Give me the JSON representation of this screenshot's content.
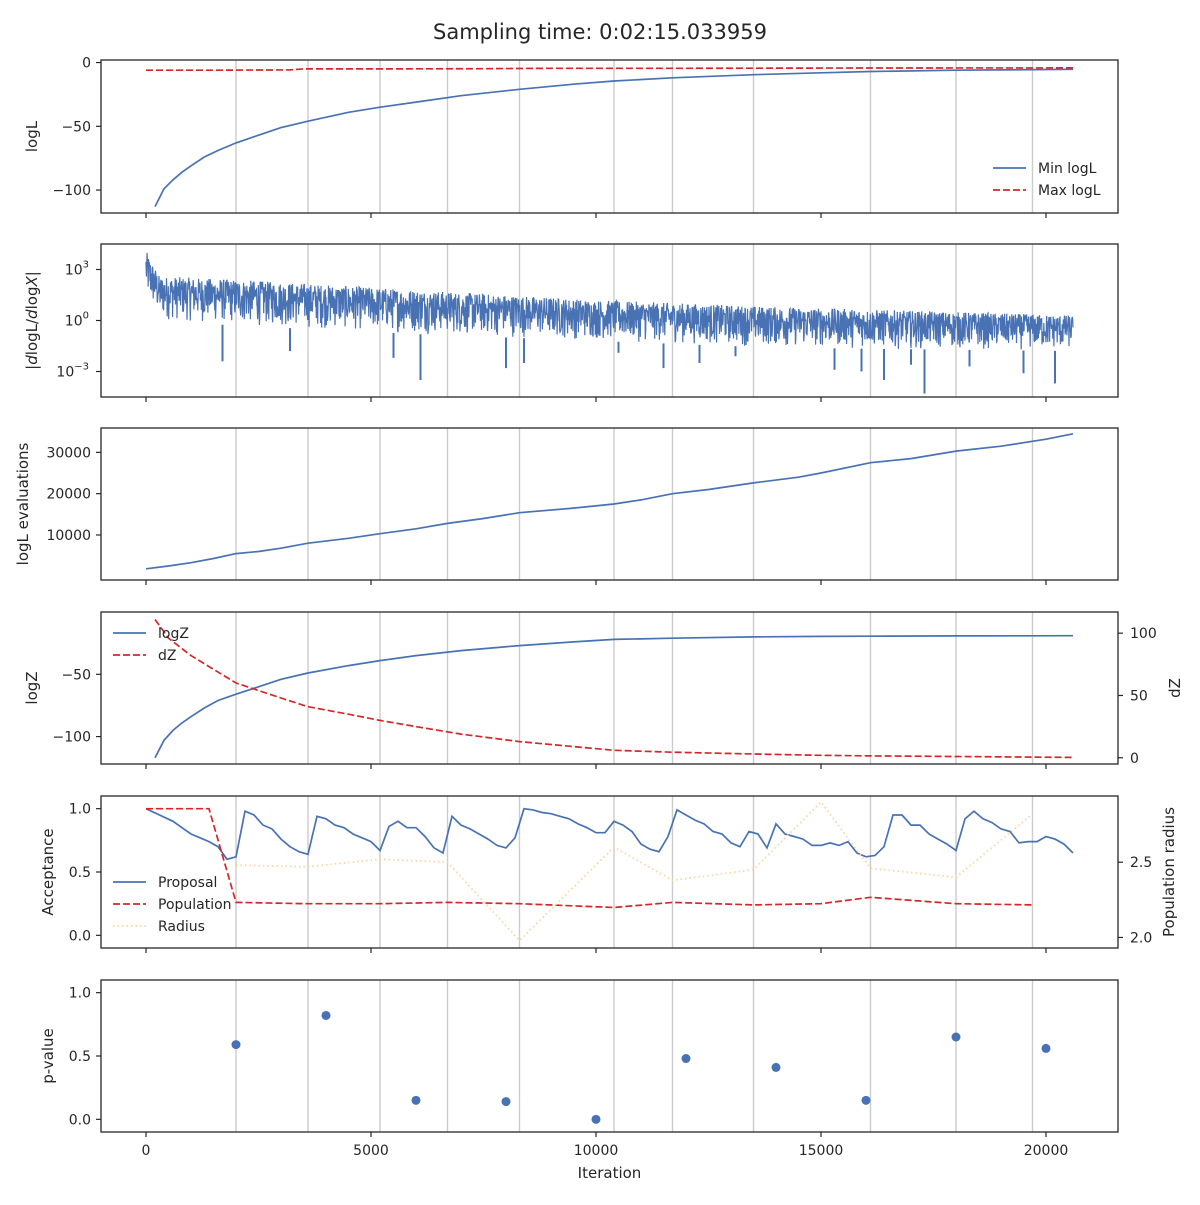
{
  "title": "Sampling time: 0:02:15.033959",
  "colors": {
    "blue": "#4872b4",
    "red": "#d62728",
    "orange": "#fdd49e",
    "grid": "#cccccc",
    "axis": "#262626"
  },
  "vlines": [
    2000,
    3600,
    5200,
    6700,
    8300,
    10400,
    11700,
    13500,
    16100,
    18000,
    19700
  ],
  "chart_data": [
    {
      "type": "line",
      "id": "logL",
      "ylabel": "logL",
      "yscale": "linear",
      "ylim": [
        -118,
        2
      ],
      "yticks": [
        0,
        -50,
        -100
      ],
      "ytick_labels": [
        "0",
        "−50",
        "−100"
      ],
      "legend": {
        "placement": "lower-right",
        "entries": [
          "Min logL",
          "Max logL"
        ]
      },
      "series": [
        {
          "name": "Min logL",
          "style": "solid",
          "color": "blue",
          "x": [
            200,
            400,
            600,
            800,
            1000,
            1300,
            1600,
            2000,
            2500,
            3000,
            3600,
            4500,
            5200,
            6000,
            7000,
            8300,
            9500,
            10400,
            11700,
            13500,
            15000,
            16100,
            18000,
            19700,
            20600
          ],
          "y": [
            -113,
            -99,
            -92,
            -86,
            -81,
            -74,
            -69,
            -63,
            -57,
            -51,
            -46,
            -39,
            -35,
            -31,
            -26,
            -21,
            -17,
            -14.5,
            -12,
            -9.5,
            -8,
            -7,
            -6,
            -5.5,
            -5.3
          ]
        },
        {
          "name": "Max logL",
          "style": "dashed",
          "color": "red",
          "x": [
            0,
            1500,
            3200,
            3500,
            5200,
            7500,
            9000,
            12000,
            16100,
            20600
          ],
          "y": [
            -6,
            -6,
            -5.8,
            -5,
            -5,
            -4.8,
            -4.5,
            -4.5,
            -4.3,
            -4.2
          ]
        }
      ]
    },
    {
      "type": "line",
      "id": "dlogL",
      "ylabel_html": "|dlogL/dlogX|",
      "yscale": "log",
      "ylim_log10": [
        -4.5,
        4.5
      ],
      "yticks": [
        3,
        0,
        -3
      ],
      "ytick_labels": [
        "10^3",
        "10^0",
        "10^-3"
      ],
      "series": [
        {
          "name": "|dlogL/dlogX|",
          "style": "noisy-band",
          "color": "blue",
          "x_range": [
            0,
            20600
          ],
          "upper_log10": [
            [
              0,
              4.1
            ],
            [
              300,
              2.6
            ],
            [
              2000,
              2.4
            ],
            [
              6000,
              1.8
            ],
            [
              10000,
              1.2
            ],
            [
              14000,
              0.8
            ],
            [
              20600,
              0.3
            ]
          ],
          "lower_log10": [
            [
              0,
              1.2
            ],
            [
              300,
              0.0
            ],
            [
              2000,
              -0.3
            ],
            [
              6000,
              -0.8
            ],
            [
              10000,
              -1.2
            ],
            [
              14000,
              -1.6
            ],
            [
              20600,
              -1.8
            ]
          ],
          "spikes": [
            [
              1700,
              -2.4
            ],
            [
              3200,
              -1.8
            ],
            [
              5500,
              -2.2
            ],
            [
              6100,
              -3.5
            ],
            [
              8000,
              -2.8
            ],
            [
              8400,
              -2.5
            ],
            [
              10500,
              -1.9
            ],
            [
              11500,
              -2.8
            ],
            [
              12300,
              -2.5
            ],
            [
              13100,
              -2.1
            ],
            [
              15300,
              -2.9
            ],
            [
              15900,
              -3.0
            ],
            [
              16400,
              -3.5
            ],
            [
              17000,
              -2.6
            ],
            [
              17300,
              -4.3
            ],
            [
              18300,
              -2.7
            ],
            [
              19500,
              -3.1
            ],
            [
              20200,
              -3.7
            ]
          ]
        }
      ]
    },
    {
      "type": "line",
      "id": "evals",
      "ylabel": "logL evaluations",
      "yscale": "linear",
      "ylim": [
        -900,
        35900
      ],
      "yticks": [
        10000,
        20000,
        30000
      ],
      "ytick_labels": [
        "10000",
        "20000",
        "30000"
      ],
      "series": [
        {
          "name": "logL evaluations",
          "style": "solid",
          "color": "blue",
          "x": [
            0,
            500,
            1000,
            1500,
            2000,
            2500,
            3000,
            3600,
            4500,
            5200,
            6000,
            6700,
            7500,
            8300,
            9500,
            10400,
            11000,
            11700,
            12500,
            13500,
            14500,
            15000,
            16100,
            17000,
            18000,
            19000,
            20000,
            20600
          ],
          "y": [
            1800,
            2500,
            3300,
            4300,
            5500,
            6000,
            6800,
            8000,
            9200,
            10300,
            11500,
            12800,
            14000,
            15400,
            16500,
            17500,
            18500,
            20000,
            21000,
            22600,
            24000,
            25000,
            27500,
            28500,
            30300,
            31500,
            33200,
            34500
          ]
        }
      ]
    },
    {
      "type": "line",
      "id": "logZ",
      "ylabel": "logZ",
      "ylabel_right": "dZ",
      "yscale": "linear",
      "ylim": [
        -122,
        0
      ],
      "yticks": [
        -50,
        -100
      ],
      "ytick_labels": [
        "−50",
        "−100"
      ],
      "ylim_right": [
        -5,
        117
      ],
      "yticks_right": [
        100,
        50,
        0
      ],
      "ytick_labels_right": [
        "100",
        "50",
        "0"
      ],
      "legend": {
        "placement": "upper-left",
        "entries": [
          "logZ",
          "dZ"
        ]
      },
      "series": [
        {
          "name": "logZ",
          "style": "solid",
          "color": "blue",
          "axis": "left",
          "x": [
            200,
            400,
            600,
            800,
            1000,
            1300,
            1600,
            2000,
            2500,
            3000,
            3600,
            4500,
            5200,
            6000,
            7000,
            8300,
            9500,
            10400,
            11700,
            13500,
            15000,
            16100,
            18000,
            19700,
            20600
          ],
          "y": [
            -117,
            -103,
            -95,
            -89,
            -84,
            -77,
            -71,
            -66,
            -60,
            -54,
            -49,
            -43,
            -39,
            -35,
            -31,
            -27,
            -24,
            -22,
            -21,
            -20,
            -19.6,
            -19.4,
            -19.2,
            -19.1,
            -19
          ]
        },
        {
          "name": "dZ",
          "style": "dashed",
          "color": "red",
          "axis": "right",
          "x": [
            200,
            500,
            1000,
            1500,
            2000,
            2500,
            3000,
            3600,
            4500,
            5200,
            6000,
            7000,
            8300,
            9500,
            10400,
            11700,
            13500,
            15000,
            16100,
            18000,
            19700,
            20600
          ],
          "y": [
            111,
            96,
            82,
            71,
            60,
            54,
            48,
            41,
            35,
            30,
            25,
            19,
            13,
            9,
            6,
            4.5,
            3,
            2,
            1.5,
            1,
            0.5,
            0.3
          ]
        }
      ]
    },
    {
      "type": "line",
      "id": "acceptance",
      "ylabel": "Acceptance",
      "ylabel_right": "Population radius",
      "yscale": "linear",
      "ylim": [
        -0.1,
        1.1
      ],
      "yticks": [
        1.0,
        0.5,
        0.0
      ],
      "ytick_labels": [
        "1.0",
        "0.5",
        "0.0"
      ],
      "ylim_right": [
        1.93,
        2.94
      ],
      "yticks_right": [
        2.5,
        2.0
      ],
      "ytick_labels_right": [
        "2.5",
        "2.0"
      ],
      "legend": {
        "placement": "lower-left",
        "entries": [
          "Proposal",
          "Population",
          "Radius"
        ]
      },
      "series": [
        {
          "name": "Proposal",
          "style": "solid",
          "color": "blue",
          "axis": "left",
          "x": [
            0,
            300,
            600,
            800,
            1000,
            1200,
            1400,
            1600,
            1700,
            1800,
            2000,
            2200,
            2400,
            2600,
            2800,
            3000,
            3200,
            3400,
            3600,
            3800,
            4000,
            4200,
            4400,
            4600,
            4800,
            5000,
            5200,
            5400,
            5600,
            5800,
            6000,
            6200,
            6400,
            6600,
            6800,
            7000,
            7200,
            7400,
            7600,
            7800,
            8000,
            8200,
            8400,
            8600,
            8800,
            9000,
            9200,
            9400,
            9600,
            9800,
            10000,
            10200,
            10400,
            10600,
            10800,
            11000,
            11200,
            11400,
            11600,
            11800,
            12000,
            12200,
            12400,
            12600,
            12800,
            13000,
            13200,
            13400,
            13600,
            13800,
            14000,
            14200,
            14400,
            14600,
            14800,
            15000,
            15200,
            15400,
            15600,
            15800,
            16000,
            16200,
            16400,
            16600,
            16800,
            17000,
            17200,
            17400,
            17600,
            17800,
            18000,
            18200,
            18400,
            18600,
            18800,
            19000,
            19200,
            19400,
            19600,
            19800,
            20000,
            20200,
            20400,
            20600
          ],
          "y": [
            1.0,
            0.95,
            0.9,
            0.85,
            0.8,
            0.77,
            0.74,
            0.7,
            0.65,
            0.6,
            0.62,
            0.98,
            0.95,
            0.87,
            0.84,
            0.76,
            0.7,
            0.66,
            0.64,
            0.94,
            0.92,
            0.87,
            0.85,
            0.8,
            0.77,
            0.74,
            0.67,
            0.86,
            0.9,
            0.85,
            0.85,
            0.78,
            0.69,
            0.65,
            0.94,
            0.87,
            0.84,
            0.8,
            0.76,
            0.71,
            0.69,
            0.77,
            1.0,
            0.99,
            0.97,
            0.96,
            0.94,
            0.92,
            0.88,
            0.85,
            0.81,
            0.81,
            0.9,
            0.87,
            0.82,
            0.72,
            0.68,
            0.66,
            0.78,
            0.99,
            0.95,
            0.91,
            0.88,
            0.82,
            0.8,
            0.73,
            0.7,
            0.82,
            0.8,
            0.69,
            0.88,
            0.8,
            0.78,
            0.76,
            0.71,
            0.71,
            0.73,
            0.71,
            0.74,
            0.65,
            0.62,
            0.63,
            0.7,
            0.95,
            0.95,
            0.87,
            0.87,
            0.8,
            0.76,
            0.72,
            0.67,
            0.92,
            0.98,
            0.92,
            0.89,
            0.84,
            0.82,
            0.73,
            0.74,
            0.74,
            0.78,
            0.76,
            0.72,
            0.65
          ]
        },
        {
          "name": "Population",
          "style": "dashed",
          "color": "red",
          "axis": "left",
          "x": [
            0,
            1400,
            2000,
            3600,
            5200,
            6700,
            8300,
            10400,
            11700,
            13500,
            15000,
            16100,
            18000,
            19700
          ],
          "y": [
            1.0,
            1.0,
            0.26,
            0.25,
            0.25,
            0.26,
            0.25,
            0.22,
            0.26,
            0.24,
            0.25,
            0.3,
            0.25,
            0.24
          ]
        },
        {
          "name": "Radius",
          "style": "dotted",
          "color": "orange",
          "axis": "right",
          "x": [
            2000,
            3600,
            5200,
            6700,
            8300,
            10400,
            11700,
            13500,
            15000,
            16100,
            18000,
            19700
          ],
          "y": [
            2.48,
            2.47,
            2.52,
            2.5,
            1.98,
            2.6,
            2.38,
            2.45,
            2.9,
            2.46,
            2.4,
            2.82
          ]
        }
      ]
    },
    {
      "type": "scatter",
      "id": "pvalue",
      "ylabel": "p-value",
      "xlabel": "Iteration",
      "yscale": "linear",
      "ylim": [
        -0.1,
        1.1
      ],
      "yticks": [
        1.0,
        0.5,
        0.0
      ],
      "ytick_labels": [
        "1.0",
        "0.5",
        "0.0"
      ],
      "xticks": [
        0,
        5000,
        10000,
        15000,
        20000
      ],
      "xtick_labels": [
        "0",
        "5000",
        "10000",
        "15000",
        "20000"
      ],
      "series": [
        {
          "name": "p-value",
          "style": "points",
          "color": "blue",
          "x": [
            2000,
            4000,
            6000,
            8000,
            10000,
            12000,
            14000,
            16000,
            18000,
            20000
          ],
          "y": [
            0.59,
            0.82,
            0.15,
            0.14,
            0.0,
            0.48,
            0.41,
            0.15,
            0.65,
            0.56
          ]
        }
      ]
    }
  ],
  "xlim": [
    -1000,
    21600
  ]
}
